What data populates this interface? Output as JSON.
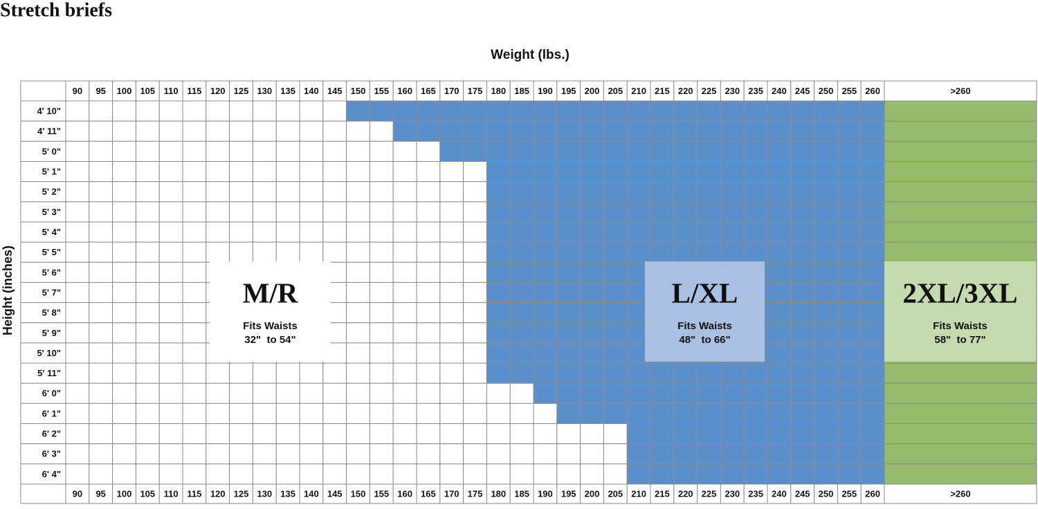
{
  "title": "Stretch briefs",
  "x_axis_title": "Weight (lbs.)",
  "y_axis_title": "Height (inches)",
  "weights": [
    90,
    95,
    100,
    105,
    110,
    115,
    120,
    125,
    130,
    135,
    140,
    145,
    150,
    155,
    160,
    165,
    170,
    175,
    180,
    185,
    190,
    195,
    200,
    205,
    210,
    215,
    220,
    225,
    230,
    235,
    240,
    245,
    250,
    255,
    260
  ],
  "over_label": ">260",
  "heights": [
    "4' 10\"",
    "4' 11\"",
    "5' 0\"",
    "5' 1\"",
    "5' 2\"",
    "5' 3\"",
    "5' 4\"",
    "5' 5\"",
    "5' 6\"",
    "5' 7\"",
    "5' 8\"",
    "5' 9\"",
    "5' 10\"",
    "5' 11\"",
    "6' 0\"",
    "6' 1\"",
    "6' 2\"",
    "6' 3\"",
    "6' 4\""
  ],
  "lxl_starts": [
    150,
    160,
    170,
    180,
    180,
    180,
    180,
    180,
    180,
    180,
    180,
    180,
    180,
    180,
    190,
    195,
    210,
    210,
    210
  ],
  "colors": {
    "lxl": "#5b8fca",
    "xxl": "#97bb6d",
    "lxl_box": "#a9c0e3",
    "xxl_box": "#c6dab0",
    "mr_box": "#ffffff"
  },
  "sizes": [
    {
      "label": "M/R",
      "note": "Fits Waists",
      "range": "32\"  to 54\""
    },
    {
      "label": "L/XL",
      "note": "Fits Waists",
      "range": "48\"  to 66\""
    },
    {
      "label": "2XL/3XL",
      "note": "Fits Waists",
      "range": "58\"  to 77\""
    }
  ]
}
